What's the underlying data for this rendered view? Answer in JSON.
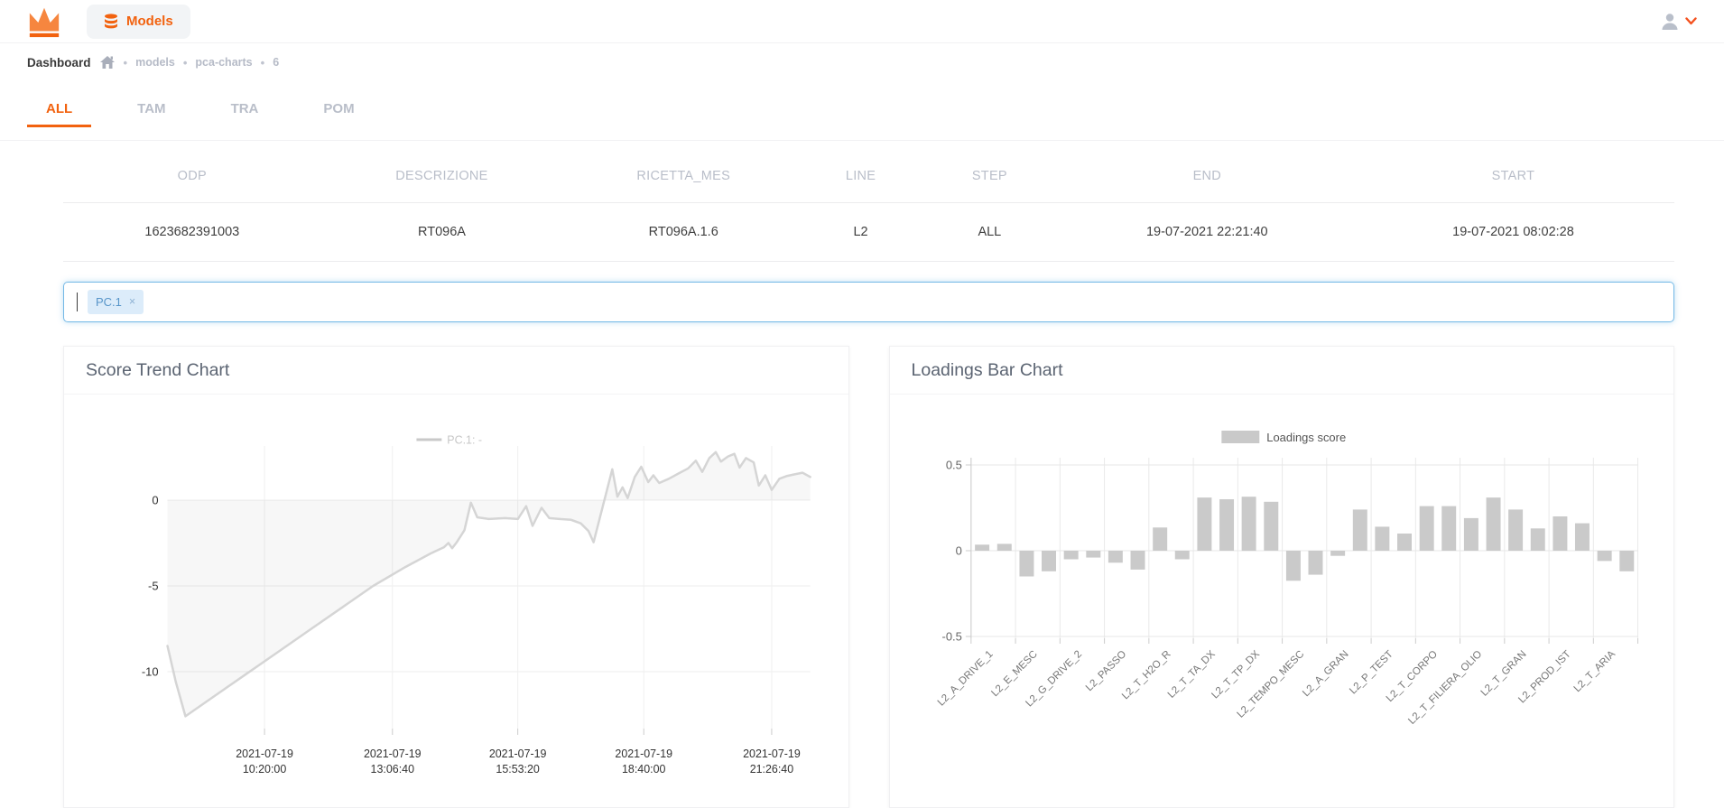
{
  "colors": {
    "accent": "#f2620f",
    "accent_light": "#f6863f",
    "chip_blue_bg": "#dcecfa",
    "chip_blue_text": "#5795c9",
    "input_border_blue": "#74b9e6",
    "bar_gray": "#cacaca",
    "line_gray": "#d5d5d5",
    "muted_gray": "#b9bec9"
  },
  "navbar": {
    "models_label": "Models"
  },
  "breadcrumb": {
    "title": "Dashboard",
    "separator": "•",
    "items": [
      "models",
      "pca-charts",
      "6"
    ]
  },
  "tabs": [
    {
      "label": "ALL",
      "active": true
    },
    {
      "label": "TAM",
      "active": false
    },
    {
      "label": "TRA",
      "active": false
    },
    {
      "label": "POM",
      "active": false
    }
  ],
  "table": {
    "columns": [
      "ODP",
      "DESCRIZIONE",
      "RICETTA_MES",
      "LINE",
      "STEP",
      "END",
      "START"
    ],
    "col_widths": [
      "16%",
      "15%",
      "15%",
      "7%",
      "9%",
      "18%",
      "20%"
    ],
    "rows": [
      [
        "1623682391003",
        "RT096A",
        "RT096A.1.6",
        "L2",
        "ALL",
        "19-07-2021 22:21:40",
        "19-07-2021 08:02:28"
      ]
    ]
  },
  "filter": {
    "chips": [
      "PC.1"
    ],
    "remove_icon": "×"
  },
  "cards": [
    {
      "title": "Score Trend Chart"
    },
    {
      "title": "Loadings Bar Chart"
    }
  ],
  "chart_data": [
    {
      "type": "area",
      "title": "Score Trend Chart",
      "legend": "PC.1: -",
      "ylabel": "",
      "y_ticks": [
        0,
        -5,
        -10
      ],
      "ylim": [
        -13.3,
        3.2
      ],
      "x_ticks": [
        {
          "pos": 0.151,
          "label": [
            "2021-07-19",
            "10:20:00"
          ]
        },
        {
          "pos": 0.35,
          "label": [
            "2021-07-19",
            "13:06:40"
          ]
        },
        {
          "pos": 0.545,
          "label": [
            "2021-07-19",
            "15:53:20"
          ]
        },
        {
          "pos": 0.741,
          "label": [
            "2021-07-19",
            "18:40:00"
          ]
        },
        {
          "pos": 0.94,
          "label": [
            "2021-07-19",
            "21:26:40"
          ]
        }
      ],
      "series": [
        [
          0.0,
          -8.5
        ],
        [
          0.013,
          -10.6
        ],
        [
          0.028,
          -12.6
        ],
        [
          0.07,
          -11.5
        ],
        [
          0.12,
          -10.2
        ],
        [
          0.17,
          -8.9
        ],
        [
          0.22,
          -7.6
        ],
        [
          0.27,
          -6.3
        ],
        [
          0.32,
          -5.0
        ],
        [
          0.37,
          -3.9
        ],
        [
          0.41,
          -3.1
        ],
        [
          0.43,
          -2.75
        ],
        [
          0.437,
          -2.5
        ],
        [
          0.443,
          -2.8
        ],
        [
          0.45,
          -2.45
        ],
        [
          0.462,
          -1.75
        ],
        [
          0.472,
          -0.15
        ],
        [
          0.482,
          -1.0
        ],
        [
          0.5,
          -1.1
        ],
        [
          0.525,
          -1.05
        ],
        [
          0.545,
          -1.1
        ],
        [
          0.558,
          -0.35
        ],
        [
          0.568,
          -1.5
        ],
        [
          0.582,
          -0.45
        ],
        [
          0.594,
          -1.05
        ],
        [
          0.61,
          -1.1
        ],
        [
          0.628,
          -1.15
        ],
        [
          0.643,
          -1.35
        ],
        [
          0.655,
          -1.8
        ],
        [
          0.663,
          -2.45
        ],
        [
          0.692,
          1.8
        ],
        [
          0.7,
          0.2
        ],
        [
          0.708,
          0.75
        ],
        [
          0.716,
          0.12
        ],
        [
          0.727,
          1.35
        ],
        [
          0.737,
          1.95
        ],
        [
          0.748,
          1.05
        ],
        [
          0.756,
          1.45
        ],
        [
          0.765,
          1.0
        ],
        [
          0.78,
          1.25
        ],
        [
          0.795,
          1.55
        ],
        [
          0.81,
          1.85
        ],
        [
          0.822,
          2.3
        ],
        [
          0.832,
          1.65
        ],
        [
          0.843,
          2.45
        ],
        [
          0.853,
          2.8
        ],
        [
          0.861,
          2.25
        ],
        [
          0.872,
          2.55
        ],
        [
          0.882,
          2.7
        ],
        [
          0.89,
          1.9
        ],
        [
          0.9,
          2.45
        ],
        [
          0.912,
          2.2
        ],
        [
          0.92,
          0.85
        ],
        [
          0.93,
          1.45
        ],
        [
          0.94,
          0.6
        ],
        [
          0.952,
          1.25
        ],
        [
          0.963,
          1.4
        ],
        [
          0.975,
          1.5
        ],
        [
          0.988,
          1.6
        ],
        [
          1.0,
          1.35
        ]
      ]
    },
    {
      "type": "bar",
      "title": "Loadings Bar Chart",
      "legend": "Loadings score",
      "bars_per_category": 2,
      "y_ticks": [
        0.5,
        0,
        -0.5
      ],
      "ylim": [
        -0.52,
        0.54
      ],
      "categories": [
        "L2_A_DRIVE_1",
        "L2_E_MESC",
        "L2_G_DRIVE_2",
        "L2_PASSO",
        "L2_T_H2O_R",
        "L2_T_TA_DX",
        "L2_T_TP_DX",
        "L2_TEMPO_MESC",
        "L2_A_GRAN",
        "L2_P_TEST",
        "L2_T_CORPO",
        "L2_T_FILIERA_OLIO",
        "L2_T_GRAN",
        "L2_PROD_IST",
        "L2_T_ARIA"
      ],
      "values": [
        0.035,
        0.04,
        -0.15,
        -0.12,
        -0.05,
        -0.04,
        -0.07,
        -0.11,
        0.135,
        -0.05,
        0.31,
        0.3,
        0.315,
        0.285,
        -0.175,
        -0.14,
        -0.03,
        0.24,
        0.14,
        0.1,
        0.26,
        0.26,
        0.19,
        0.31,
        0.24,
        0.13,
        0.2,
        0.16,
        -0.06,
        -0.12
      ]
    }
  ]
}
